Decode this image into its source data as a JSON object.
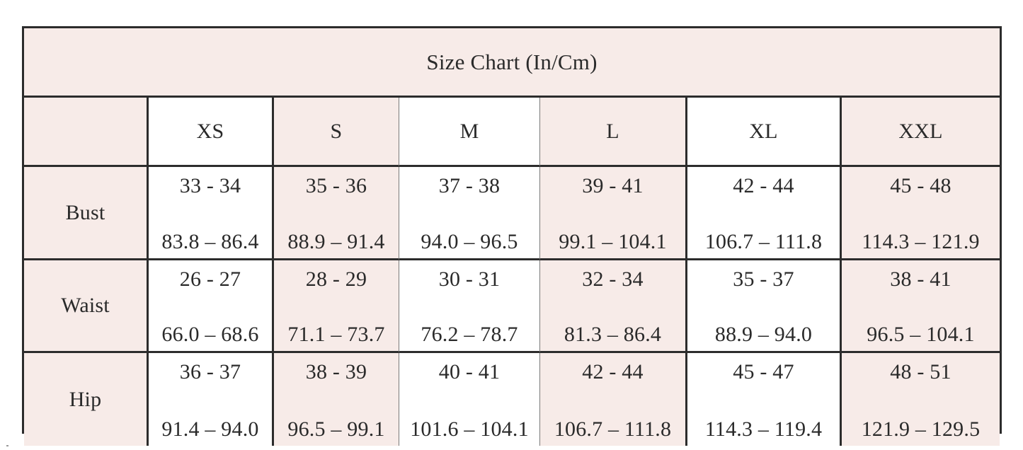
{
  "title": "Size Chart (In/Cm)",
  "sizes": [
    "XS",
    "S",
    "M",
    "L",
    "XL",
    "XXL"
  ],
  "rows": [
    {
      "label": "Bust",
      "inches": [
        "33 - 34",
        "35 - 36",
        "37 - 38",
        "39 - 41",
        "42 - 44",
        "45 - 48"
      ],
      "cm": [
        "83.8 – 86.4",
        "88.9 – 91.4",
        "94.0 – 96.5",
        "99.1 – 104.1",
        "106.7 – 111.8",
        "114.3 – 121.9"
      ]
    },
    {
      "label": "Waist",
      "inches": [
        "26 - 27",
        "28 - 29",
        "30 - 31",
        "32 - 34",
        "35 - 37",
        "38 - 41"
      ],
      "cm": [
        "66.0 – 68.6",
        "71.1 – 73.7",
        "76.2 – 78.7",
        "81.3 – 86.4",
        "88.9 – 94.0",
        "96.5 – 104.1"
      ]
    },
    {
      "label": "Hip",
      "inches": [
        "36 - 37",
        "38 - 39",
        "40 - 41",
        "42 - 44",
        "45 - 47",
        "48 - 51"
      ],
      "cm": [
        "91.4 – 94.0",
        "96.5 – 99.1",
        "101.6 – 104.1",
        "106.7 – 111.8",
        "114.3 – 119.4",
        "121.9 – 129.5"
      ]
    }
  ],
  "colors": {
    "pink": "#f7ebe8",
    "white": "#ffffff",
    "border": "#2c2c2c",
    "text": "#2a2a2a"
  }
}
